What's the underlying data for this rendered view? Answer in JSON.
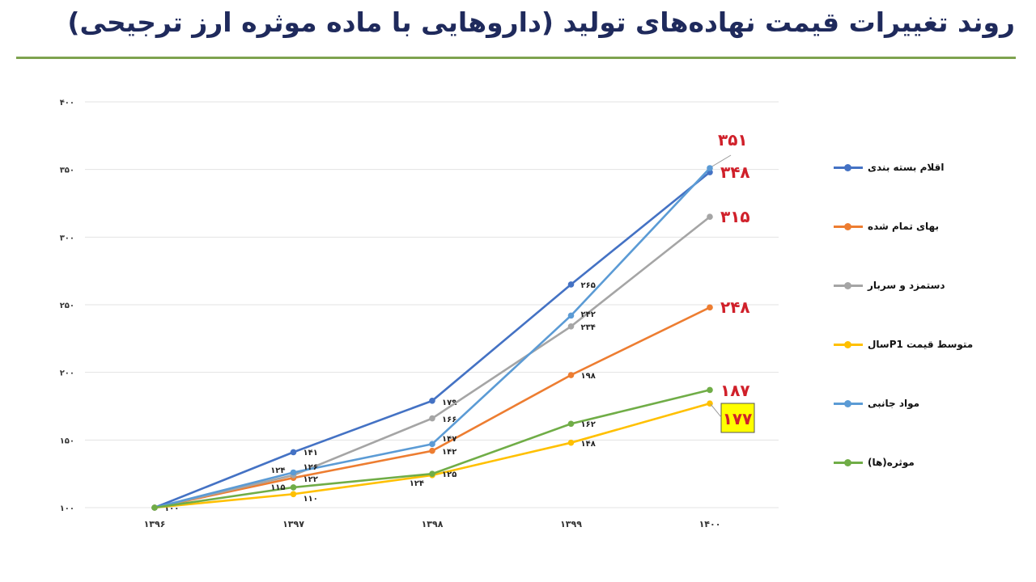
{
  "title": "روند تغییرات قیمت نهاده‌های تولید (داروهایی با ماده موثره ارز ترجیحی)",
  "chart_data": {
    "type": "line",
    "title": "روند تغییرات قیمت نهاده‌های تولید (داروهایی با ماده موثره ارز ترجیحی)",
    "categories": [
      "۱۳۹۶",
      "۱۳۹۷",
      "۱۳۹۸",
      "۱۳۹۹",
      "۱۴۰۰"
    ],
    "y_ticks": [
      "۱۰۰",
      "۱۵۰",
      "۲۰۰",
      "۲۵۰",
      "۳۰۰",
      "۳۵۰",
      "۴۰۰"
    ],
    "ylim": [
      100,
      400
    ],
    "grid": true,
    "legend_position": "right",
    "series": [
      {
        "name": "اقلام بسته بندی",
        "color": "#4472C4",
        "values": [
          100,
          141,
          179,
          265,
          348
        ],
        "labels": [
          "۱۰۰",
          "۱۴۱",
          "۱۷۹",
          "۲۶۵",
          "۳۴۸"
        ]
      },
      {
        "name": "بهای تمام شده",
        "color": "#ED7D31",
        "values": [
          100,
          122,
          142,
          198,
          248
        ],
        "labels": [
          null,
          "۱۲۲",
          "۱۴۲",
          "۱۹۸",
          "۲۴۸"
        ]
      },
      {
        "name": "دستمزد و سربار",
        "color": "#A5A5A5",
        "values": [
          100,
          124,
          166,
          234,
          315
        ],
        "labels": [
          null,
          "۱۲۴",
          "۱۶۶",
          "۲۳۴",
          "۳۱۵"
        ]
      },
      {
        "name": "متوسط قیمت P1سال",
        "color": "#FFC000",
        "values": [
          100,
          110,
          124,
          148,
          177
        ],
        "labels": [
          null,
          "۱۱۰",
          "۱۲۴",
          "۱۴۸",
          "۱۷۷"
        ]
      },
      {
        "name": "مواد جانبی",
        "color": "#5B9BD5",
        "values": [
          100,
          126,
          147,
          242,
          351
        ],
        "labels": [
          null,
          "۱۲۶",
          "۱۴۷",
          "۲۴۲",
          "۳۵۱"
        ]
      },
      {
        "name": "موثره(ها)",
        "color": "#70AD47",
        "values": [
          100,
          115,
          125,
          162,
          187
        ],
        "labels": [
          null,
          "۱۱۵",
          "۱۲۵",
          "۱۶۲",
          "۱۸۷"
        ]
      }
    ],
    "end_label_color": "#D0202A",
    "highlight_box_color": "#FFFF00"
  }
}
